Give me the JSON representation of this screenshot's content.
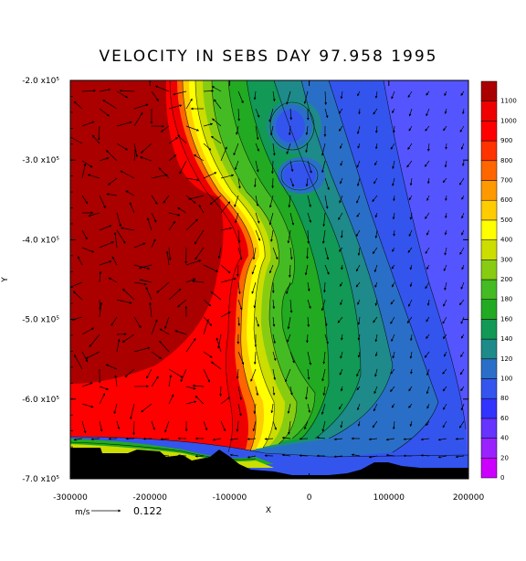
{
  "chart_data": {
    "type": "heatmap",
    "title": "VELOCITY IN SEBS DAY 97.958 1995",
    "xlabel": "X",
    "ylabel": "Y",
    "xlim": [
      -300000,
      200000
    ],
    "ylim": [
      -700000,
      -200000
    ],
    "x_ticks": [
      {
        "value": -300000,
        "label": "-300000"
      },
      {
        "value": -200000,
        "label": "-200000"
      },
      {
        "value": -100000,
        "label": "-100000"
      },
      {
        "value": 0,
        "label": "0"
      },
      {
        "value": 100000,
        "label": "100000"
      },
      {
        "value": 200000,
        "label": "200000"
      }
    ],
    "y_ticks": [
      {
        "value": -200000,
        "label": "-2.0 x10⁵"
      },
      {
        "value": -300000,
        "label": "-3.0 x10⁵"
      },
      {
        "value": -400000,
        "label": "-4.0 x10⁵"
      },
      {
        "value": -500000,
        "label": "-5.0 x10⁵"
      },
      {
        "value": -600000,
        "label": "-6.0 x10⁵"
      },
      {
        "value": -700000,
        "label": "-7.0 x10⁵"
      }
    ],
    "colorbar": {
      "levels": [
        0,
        20,
        40,
        60,
        80,
        100,
        120,
        140,
        160,
        180,
        200,
        300,
        400,
        500,
        600,
        700,
        800,
        900,
        1000,
        1100
      ],
      "colors": [
        "#cc00ff",
        "#9922ff",
        "#6633ff",
        "#3333ff",
        "#3355ee",
        "#2a6fc7",
        "#1e8a8a",
        "#119955",
        "#22aa22",
        "#44bb22",
        "#88cc11",
        "#ccdd00",
        "#ffff00",
        "#ffcc00",
        "#ff9900",
        "#ff6600",
        "#ff3300",
        "#ff0000",
        "#ee0000",
        "#aa0000"
      ]
    },
    "vector_reference": {
      "units": "m/s",
      "value": "0.122"
    },
    "grid": false,
    "legend": "right colorbar"
  }
}
